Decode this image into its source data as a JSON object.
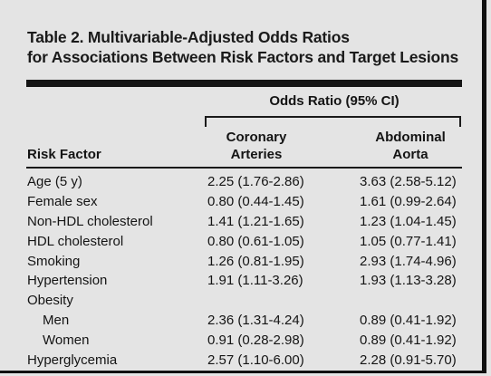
{
  "table": {
    "title_line1": "Table 2. Multivariable-Adjusted Odds Ratios",
    "title_line2": "for Associations Between Risk Factors and Target Lesions",
    "spanner": "Odds Ratio (95% CI)",
    "headers": {
      "risk_factor": "Risk Factor",
      "coronary_line1": "Coronary",
      "coronary_line2": "Arteries",
      "abdominal_line1": "Abdominal",
      "abdominal_line2": "Aorta"
    },
    "rows": [
      {
        "label": "Age (5 y)",
        "coronary": "2.25 (1.76-2.86)",
        "abdominal": "3.63 (2.58-5.12)"
      },
      {
        "label": "Female sex",
        "coronary": "0.80 (0.44-1.45)",
        "abdominal": "1.61 (0.99-2.64)"
      },
      {
        "label": "Non-HDL cholesterol",
        "coronary": "1.41 (1.21-1.65)",
        "abdominal": "1.23 (1.04-1.45)"
      },
      {
        "label": "HDL cholesterol",
        "coronary": "0.80 (0.61-1.05)",
        "abdominal": "1.05 (0.77-1.41)"
      },
      {
        "label": "Smoking",
        "coronary": "1.26 (0.81-1.95)",
        "abdominal": "2.93 (1.74-4.96)"
      },
      {
        "label": "Hypertension",
        "coronary": "1.91 (1.11-3.26)",
        "abdominal": "1.93 (1.13-3.28)"
      },
      {
        "label": "Obesity",
        "coronary": "",
        "abdominal": ""
      },
      {
        "label": "Men",
        "coronary": "2.36 (1.31-4.24)",
        "abdominal": "0.89 (0.41-1.92)"
      },
      {
        "label": "Women",
        "coronary": "0.91 (0.28-2.98)",
        "abdominal": "0.89 (0.41-1.92)"
      },
      {
        "label": "Hyperglycemia",
        "coronary": "2.57 (1.10-6.00)",
        "abdominal": "2.28 (0.91-5.70)"
      }
    ]
  }
}
